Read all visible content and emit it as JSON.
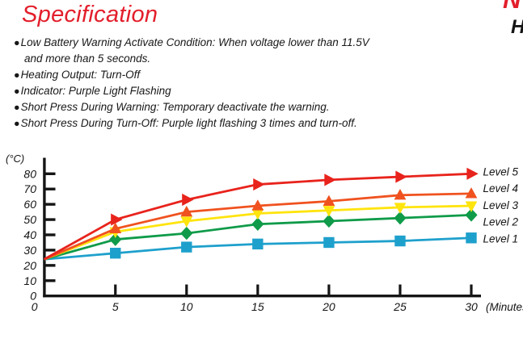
{
  "spec": {
    "title": "Specification",
    "bullet_char": "●",
    "items": [
      {
        "line1": "Low Battery Warning Activate Condition: When voltage lower than 11.5V",
        "line2": "and more than 5 seconds."
      },
      {
        "line1": "Heating Output: Turn-Off",
        "line2": ""
      },
      {
        "line1": "Indicator: Purple Light Flashing",
        "line2": ""
      },
      {
        "line1": "Short Press During Warning: Temporary deactivate the warning.",
        "line2": ""
      },
      {
        "line1": "Short Press During Turn-Off: Purple light flashing 3 times and turn-off.",
        "line2": ""
      }
    ]
  },
  "cutoff_right": {
    "top_letter": "N",
    "bottom_letter": "H"
  },
  "chart_data": {
    "type": "line",
    "title": "",
    "xlabel": "(Minutes)",
    "ylabel": "(°C)",
    "x": [
      0,
      5,
      10,
      15,
      20,
      25,
      30
    ],
    "x_ticks": [
      0,
      5,
      10,
      15,
      20,
      25,
      30
    ],
    "y_ticks": [
      0,
      10,
      20,
      30,
      40,
      50,
      60,
      70,
      80
    ],
    "xlim": [
      0,
      30
    ],
    "ylim": [
      0,
      80
    ],
    "grid": false,
    "legend_position": "right-of-lines",
    "axis_color": "#151515",
    "series": [
      {
        "name": "Level 1",
        "marker": "square",
        "color": "#1EA0CC",
        "values": [
          24,
          28,
          32,
          34,
          35,
          36,
          38
        ]
      },
      {
        "name": "Level 2",
        "marker": "diamond",
        "color": "#0F9B49",
        "values": [
          24,
          37,
          41,
          47,
          49,
          51,
          53
        ]
      },
      {
        "name": "Level 3",
        "marker": "triangle-down",
        "color": "#FFE40D",
        "values": [
          24,
          42,
          49,
          54,
          56,
          58,
          59
        ]
      },
      {
        "name": "Level 4",
        "marker": "triangle-up",
        "color": "#F0521F",
        "values": [
          24,
          44,
          55,
          59,
          62,
          66,
          67
        ]
      },
      {
        "name": "Level 5",
        "marker": "triangle-right",
        "color": "#E8231C",
        "values": [
          24,
          50,
          63,
          73,
          76,
          78,
          80
        ]
      }
    ]
  }
}
